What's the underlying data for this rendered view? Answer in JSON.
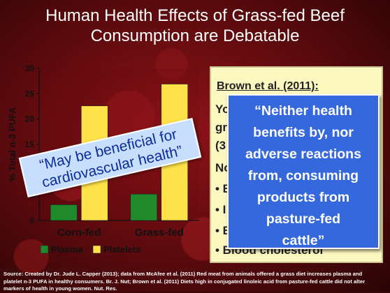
{
  "title_line1": "Human Health Effects of Grass-fed Beef",
  "title_line2": "Consumption are Debatable",
  "chart_data": {
    "type": "bar",
    "categories": [
      "Corn-fed",
      "Grass-fed"
    ],
    "series": [
      {
        "name": "Plasma",
        "values": [
          3.1,
          5.2
        ],
        "color": "#1e8a2c"
      },
      {
        "name": "Platelets",
        "values": [
          22.6,
          26.9
        ],
        "color": "#ffe24a"
      }
    ],
    "ylabel": "% Total n-3 PUFA",
    "ylim": [
      0,
      30
    ],
    "yticks": [
      0,
      5,
      10,
      15,
      20,
      25,
      30
    ],
    "legend_position": "bottom",
    "grid": false
  },
  "stamp": {
    "line1": "“May be beneficial for",
    "line2": "cardiovascular health”"
  },
  "brown": {
    "heading": "Brown et al. (2011):",
    "frag1": "Yo",
    "frag2": "gr",
    "frag3": "(3",
    "frag4": "No",
    "bullets": [
      "• B",
      "• I",
      "• B",
      "• Blood cholesterol"
    ]
  },
  "callout": {
    "lines": [
      "“Neither health",
      "benefits by, nor",
      "adverse reactions",
      "from, consuming",
      "products from",
      "pasture-fed",
      "cattle”"
    ]
  },
  "source": {
    "line1": "Source: Created by Dr. Jude L. Capper (2013); data from McAfee et al. (2011) Red meat from animals offered a grass diet increases plasma and",
    "line2": "platelet n-3 PUFA in healthy consumers. Br. J. Nut; Brown et al. (2011) Diets high in conjugated linoleic acid from pasture-fed cattle did not alter",
    "line3": "markers of health in young women. Nut. Res."
  },
  "colors": {
    "background": "#6e0c10",
    "plasma": "#1e8a2c",
    "platelets": "#ffe24a",
    "callout": "#3468dc",
    "note": "#fdf8c0"
  }
}
